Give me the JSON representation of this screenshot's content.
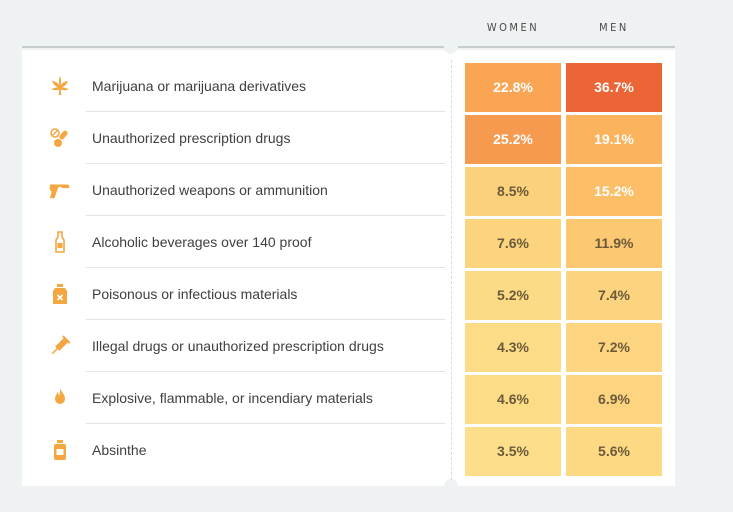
{
  "chart_data": {
    "type": "heatmap",
    "columns": [
      "WOMEN",
      "MEN"
    ],
    "rows": [
      {
        "label": "Marijuana or marijuana derivatives",
        "icon": "cannabis-leaf-icon",
        "women": "22.8%",
        "men": "36.7%",
        "women_value": 22.8,
        "men_value": 36.7
      },
      {
        "label": "Unauthorized prescription drugs",
        "icon": "pills-icon",
        "women": "25.2%",
        "men": "19.1%",
        "women_value": 25.2,
        "men_value": 19.1
      },
      {
        "label": "Unauthorized weapons or ammunition",
        "icon": "revolver-icon",
        "women": "8.5%",
        "men": "15.2%",
        "women_value": 8.5,
        "men_value": 15.2
      },
      {
        "label": "Alcoholic beverages over 140 proof",
        "icon": "bottle-icon",
        "women": "7.6%",
        "men": "11.9%",
        "women_value": 7.6,
        "men_value": 11.9
      },
      {
        "label": "Poisonous or infectious materials",
        "icon": "poison-bottle-icon",
        "women": "5.2%",
        "men": "7.4%",
        "women_value": 5.2,
        "men_value": 7.4
      },
      {
        "label": "Illegal drugs or unauthorized prescription drugs",
        "icon": "syringe-icon",
        "women": "4.3%",
        "men": "7.2%",
        "women_value": 4.3,
        "men_value": 7.2
      },
      {
        "label": "Explosive, flammable, or incendiary materials",
        "icon": "flame-icon",
        "women": "4.6%",
        "men": "6.9%",
        "women_value": 4.6,
        "men_value": 6.9
      },
      {
        "label": "Absinthe",
        "icon": "absinthe-bottle-icon",
        "women": "3.5%",
        "men": "5.6%",
        "women_value": 3.5,
        "men_value": 5.6
      }
    ],
    "color_scale": {
      "low": "#fde08c",
      "mid": "#fbb25a",
      "high": "#ec6435"
    }
  }
}
